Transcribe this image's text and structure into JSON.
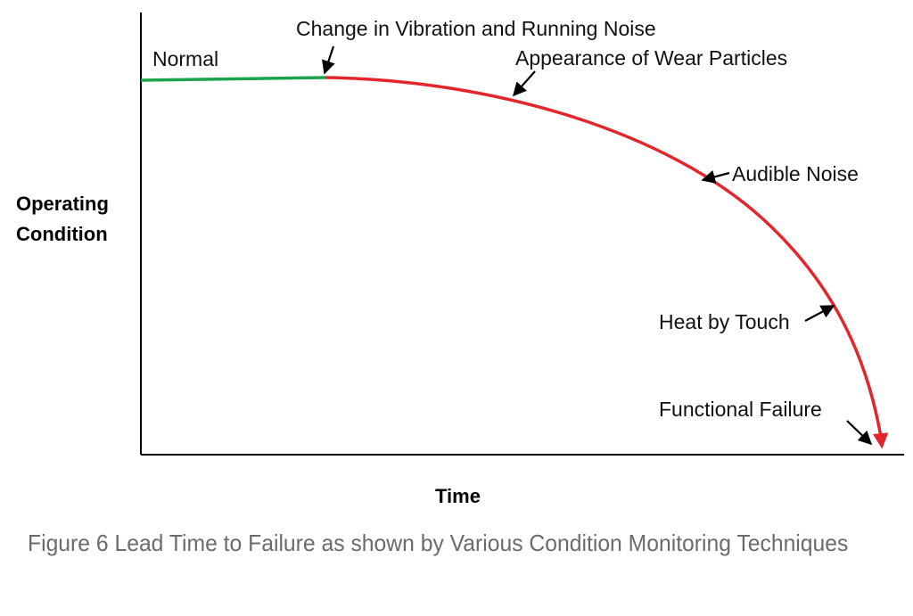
{
  "labels": {
    "y_axis": "Operating Condition",
    "x_axis": "Time",
    "normal": "Normal",
    "vibration": "Change in Vibration and Running Noise",
    "wear": "Appearance of Wear Particles",
    "audible": "Audible Noise",
    "heat": "Heat by Touch",
    "failure": "Functional Failure"
  },
  "caption": "Figure 6 Lead Time to Failure as shown by Various Condition Monitoring Techniques",
  "colors": {
    "normal_segment": "#1aa34a",
    "degradation_curve": "#e3262b",
    "axis": "#000000",
    "caption": "#6b6b6b"
  }
}
